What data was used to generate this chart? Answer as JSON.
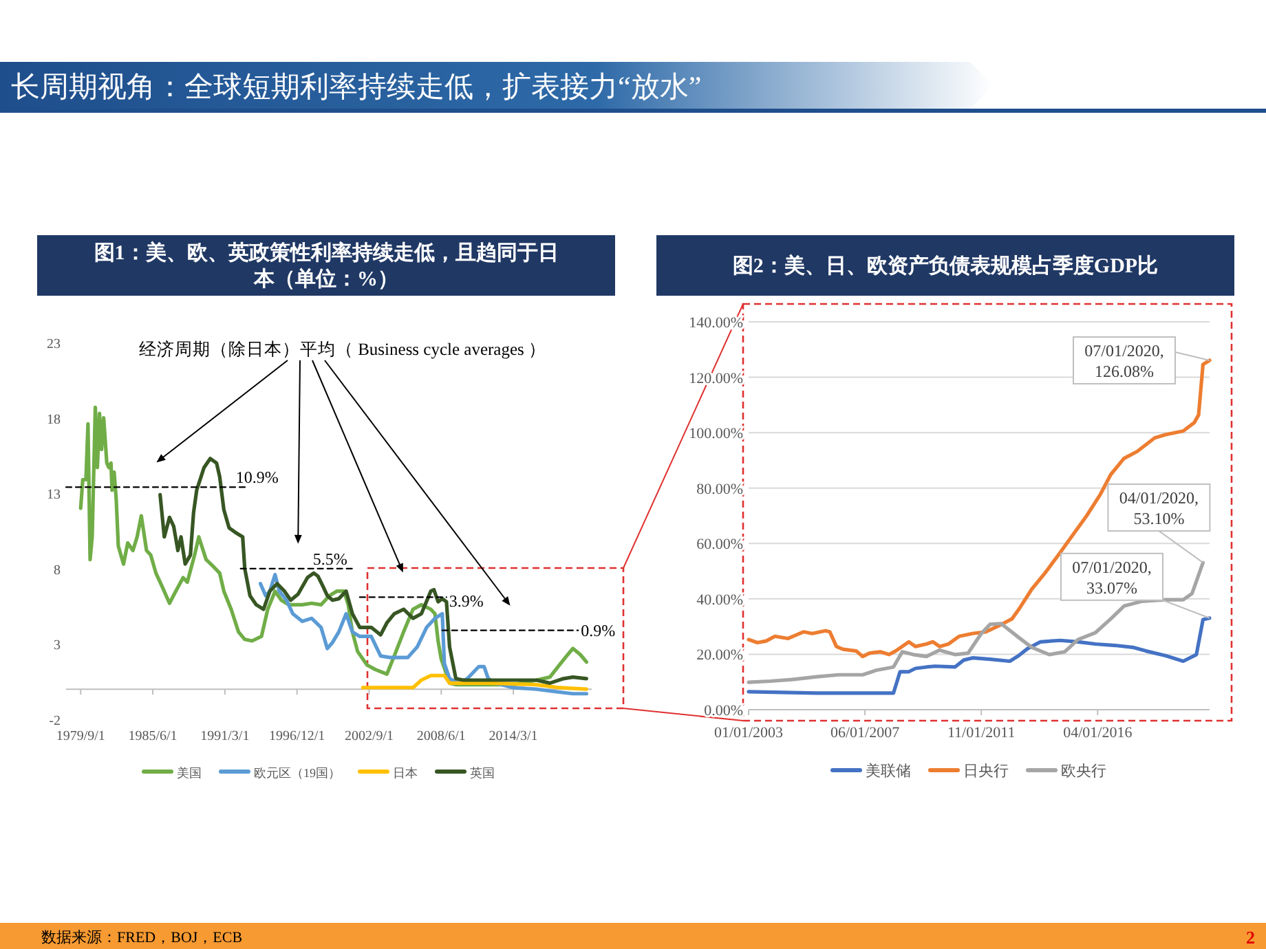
{
  "chart_data": [
    {
      "type": "other",
      "title": "长周期视角：全球短期利率持续走低，扩表接力“放水”",
      "annotations": [
        "数据来源：FRED，BOJ，ECB",
        "2"
      ]
    },
    {
      "type": "line",
      "title": "图1：美、欧、英政策性利率持续走低，且趋同于日本（单位：%）",
      "legend": "bottom",
      "xlim": [
        "1978-07",
        "2020-06"
      ],
      "ylim": [
        -2,
        23
      ],
      "yticks": [
        -2,
        3,
        8,
        13,
        18,
        23
      ],
      "xticks": [
        {
          "value": "1979-09-01",
          "label": "1979/9/1"
        },
        {
          "value": "1985-06-01",
          "label": "1985/6/1"
        },
        {
          "value": "1991-03-01",
          "label": "1991/3/1"
        },
        {
          "value": "1996-12-01",
          "label": "1996/12/1"
        },
        {
          "value": "2002-09-01",
          "label": "2002/9/1"
        },
        {
          "value": "2008-06-01",
          "label": "2008/6/1"
        },
        {
          "value": "2014-03-01",
          "label": "2014/3/1"
        }
      ],
      "series": [
        {
          "name": "美国",
          "color": "#70ad47",
          "x": [
            "1979-09",
            "1979-11",
            "1980-02",
            "1980-04",
            "1980-06",
            "1980-08",
            "1980-11",
            "1981-01",
            "1981-03",
            "1981-05",
            "1981-07",
            "1981-10",
            "1981-12",
            "1982-02",
            "1982-03",
            "1982-05",
            "1982-07",
            "1982-09",
            "1983-02",
            "1983-06",
            "1983-11",
            "1984-03",
            "1984-07",
            "1984-12",
            "1985-04",
            "1985-09",
            "1986-03",
            "1986-10",
            "1987-04",
            "1987-11",
            "1988-03",
            "1988-10",
            "1989-02",
            "1989-09",
            "1990-03",
            "1990-10",
            "1991-02",
            "1991-09",
            "1992-04",
            "1992-10",
            "1993-05",
            "1994-02",
            "1994-08",
            "1995-03",
            "1995-09",
            "1996-04",
            "1996-11",
            "1997-05",
            "1998-02",
            "1998-11",
            "1999-07",
            "2000-02",
            "2000-09",
            "2001-01",
            "2001-05",
            "2001-10",
            "2002-07",
            "2003-03",
            "2004-02",
            "2004-09",
            "2005-06",
            "2006-03",
            "2006-11",
            "2007-08",
            "2007-12",
            "2008-03",
            "2008-06",
            "2008-11",
            "2009-02",
            "2009-08",
            "2010-03",
            "2012-05",
            "2014-03",
            "2016-01",
            "2017-02",
            "2017-11",
            "2018-06",
            "2018-12",
            "2019-07",
            "2020-01"
          ],
          "values": [
            12.0,
            13.9,
            13.9,
            17.6,
            8.6,
            10.1,
            18.7,
            14.7,
            18.3,
            15.9,
            18.0,
            15.0,
            14.7,
            15.0,
            13.2,
            14.4,
            12.6,
            9.5,
            8.3,
            9.7,
            9.2,
            10.1,
            11.5,
            9.2,
            8.9,
            7.7,
            6.8,
            5.7,
            6.5,
            7.4,
            7.1,
            8.9,
            10.1,
            8.6,
            8.2,
            7.7,
            6.5,
            5.3,
            3.8,
            3.3,
            3.2,
            3.5,
            5.3,
            6.5,
            5.9,
            5.6,
            5.6,
            5.6,
            5.7,
            5.6,
            6.2,
            6.5,
            6.5,
            5.6,
            3.8,
            2.5,
            1.6,
            1.3,
            1.0,
            2.2,
            3.8,
            5.3,
            5.6,
            5.3,
            5.0,
            3.2,
            2.0,
            1.0,
            0.4,
            0.3,
            0.3,
            0.3,
            0.3,
            0.6,
            0.8,
            1.6,
            2.2,
            2.7,
            2.3,
            1.8
          ]
        },
        {
          "name": "欧元区（19国）",
          "color": "#5b9bd5",
          "x": [
            "1994-01",
            "1994-06",
            "1994-10",
            "1995-03",
            "1995-07",
            "1996-02",
            "1996-08",
            "1997-05",
            "1998-02",
            "1998-11",
            "1999-05",
            "1999-10",
            "2000-04",
            "2000-11",
            "2001-05",
            "2001-12",
            "2002-11",
            "2003-08",
            "2004-05",
            "2005-10",
            "2006-07",
            "2007-04",
            "2007-12",
            "2008-07",
            "2008-09",
            "2009-02",
            "2009-10",
            "2010-07",
            "2011-06",
            "2011-11",
            "2012-03",
            "2012-10",
            "2014-03",
            "2016-01",
            "2017-11",
            "2018-12",
            "2020-01"
          ],
          "values": [
            7.0,
            6.2,
            6.5,
            7.6,
            6.5,
            5.9,
            5.0,
            4.5,
            4.7,
            4.1,
            2.7,
            3.1,
            3.8,
            5.0,
            3.8,
            3.5,
            3.5,
            2.2,
            2.1,
            2.1,
            2.8,
            4.1,
            4.7,
            5.0,
            1.7,
            0.7,
            0.4,
            0.7,
            1.5,
            1.5,
            0.7,
            0.4,
            0.1,
            0.0,
            -0.2,
            -0.3,
            -0.3
          ]
        },
        {
          "name": "日本",
          "color": "#ffc000",
          "x": [
            "2002-03",
            "2006-03",
            "2006-11",
            "2007-08",
            "2008-09",
            "2009-02",
            "2012-05",
            "2016-01",
            "2017-11",
            "2020-01"
          ],
          "values": [
            0.1,
            0.1,
            0.6,
            0.9,
            0.9,
            0.4,
            0.4,
            0.3,
            0.1,
            0.0
          ]
        },
        {
          "name": "英国",
          "color": "#375623",
          "x": [
            "1986-01",
            "1986-05",
            "1986-10",
            "1987-02",
            "1987-06",
            "1987-09",
            "1988-01",
            "1988-06",
            "1988-09",
            "1988-12",
            "1989-07",
            "1990-01",
            "1990-07",
            "1990-10",
            "1991-02",
            "1991-07",
            "1992-01",
            "1992-08",
            "1992-10",
            "1993-03",
            "1993-09",
            "1994-04",
            "1994-10",
            "1995-05",
            "1995-12",
            "1996-06",
            "1997-01",
            "1997-10",
            "1998-04",
            "1998-08",
            "1999-01",
            "1999-05",
            "1999-10",
            "2000-04",
            "2000-11",
            "2001-05",
            "2001-12",
            "2002-11",
            "2003-08",
            "2004-02",
            "2004-09",
            "2005-06",
            "2006-03",
            "2006-11",
            "2007-08",
            "2007-11",
            "2008-03",
            "2008-07",
            "2008-11",
            "2009-02",
            "2009-08",
            "2010-03",
            "2012-01",
            "2014-03",
            "2016-01",
            "2017-02",
            "2018-03",
            "2018-12",
            "2020-01"
          ],
          "values": [
            12.9,
            10.1,
            11.4,
            10.8,
            9.2,
            10.1,
            8.3,
            8.9,
            11.7,
            13.2,
            14.7,
            15.3,
            15.0,
            14.1,
            11.9,
            10.7,
            10.4,
            10.1,
            8.0,
            6.2,
            5.6,
            5.3,
            6.5,
            7.0,
            6.5,
            5.9,
            6.3,
            7.4,
            7.7,
            7.5,
            6.8,
            6.2,
            5.9,
            6.0,
            6.5,
            5.0,
            4.1,
            4.1,
            3.6,
            4.4,
            5.0,
            5.3,
            4.7,
            5.0,
            6.5,
            6.6,
            5.8,
            6.0,
            5.8,
            2.8,
            0.7,
            0.6,
            0.6,
            0.6,
            0.6,
            0.4,
            0.7,
            0.8,
            0.7
          ]
        },
        {
          "color": "#000000",
          "line_style": "dashed",
          "x": [
            "1978-07",
            "1992-12"
          ],
          "values": [
            13.4,
            13.4
          ]
        },
        {
          "color": "#000000",
          "line_style": "dashed",
          "x": [
            "1992-06",
            "2001-08"
          ],
          "values": [
            8.0,
            8.0
          ]
        },
        {
          "color": "#000000",
          "line_style": "dashed",
          "x": [
            "2001-12",
            "2008-11"
          ],
          "values": [
            6.1,
            6.1
          ]
        },
        {
          "color": "#000000",
          "line_style": "dashed",
          "x": [
            "2008-07",
            "2019-05"
          ],
          "values": [
            3.9,
            3.9
          ]
        }
      ],
      "annotations": [
        "经济周期（除日本）平均（ Business cycle averages ）",
        {
          "text": "10.9%",
          "x": "1992-12",
          "y": 13.4
        },
        {
          "text": "5.5%",
          "x": "2001-08",
          "y": 8.0
        },
        {
          "text": "3.9%",
          "x": "2008-11",
          "y": 6.1
        },
        {
          "text": "0.9%",
          "x": "2019-05",
          "y": 3.9
        }
      ]
    },
    {
      "type": "line",
      "title": "图2：美、日、欧资产负债表规模占季度GDP比",
      "legend": "bottom",
      "grid": "y",
      "xlim": [
        "2003-01",
        "2020-07"
      ],
      "ylim": [
        0,
        140
      ],
      "yticks": [
        {
          "value": 0,
          "label": "0.00%"
        },
        {
          "value": 20,
          "label": "20.00%"
        },
        {
          "value": 40,
          "label": "40.00%"
        },
        {
          "value": 60,
          "label": "60.00%"
        },
        {
          "value": 80,
          "label": "80.00%"
        },
        {
          "value": 100,
          "label": "100.00%"
        },
        {
          "value": 120,
          "label": "120.00%"
        },
        {
          "value": 140,
          "label": "140.00%"
        }
      ],
      "xticks": [
        {
          "value": "2003-01-01",
          "label": "01/01/2003"
        },
        {
          "value": "2007-06-01",
          "label": "06/01/2007"
        },
        {
          "value": "2011-11-01",
          "label": "11/01/2011"
        },
        {
          "value": "2016-04-01",
          "label": "04/01/2016"
        }
      ],
      "series": [
        {
          "name": "美联储",
          "color": "#4472c4",
          "x": [
            "2003-01",
            "2005-08",
            "2008-07",
            "2008-10",
            "2009-02",
            "2009-05",
            "2009-10",
            "2010-02",
            "2010-11",
            "2011-03",
            "2011-07",
            "2012-03",
            "2012-12",
            "2013-04",
            "2013-08",
            "2014-02",
            "2014-11",
            "2015-07",
            "2016-03",
            "2016-12",
            "2017-08",
            "2018-02",
            "2018-11",
            "2019-07",
            "2020-01",
            "2020-04",
            "2020-07"
          ],
          "values": [
            6.5,
            6.0,
            6.0,
            13.7,
            13.7,
            14.9,
            15.4,
            15.7,
            15.4,
            17.9,
            18.7,
            18.2,
            17.5,
            19.5,
            22.0,
            24.5,
            25.0,
            24.5,
            23.7,
            23.2,
            22.5,
            21.2,
            19.5,
            17.5,
            19.9,
            32.5,
            33.07
          ]
        },
        {
          "name": "日央行",
          "color": "#ed7d31",
          "x": [
            "2003-01",
            "2003-05",
            "2003-09",
            "2004-01",
            "2004-07",
            "2005-02",
            "2005-06",
            "2005-12",
            "2006-02",
            "2006-05",
            "2006-08",
            "2007-02",
            "2007-05",
            "2007-08",
            "2008-01",
            "2008-05",
            "2008-08",
            "2009-02",
            "2009-05",
            "2009-10",
            "2010-01",
            "2010-04",
            "2010-08",
            "2011-01",
            "2011-07",
            "2012-01",
            "2012-07",
            "2013-01",
            "2013-04",
            "2013-10",
            "2014-04",
            "2014-11",
            "2015-05",
            "2015-11",
            "2016-05",
            "2016-10",
            "2017-04",
            "2017-10",
            "2018-06",
            "2018-11",
            "2019-07",
            "2019-12",
            "2020-02",
            "2020-04",
            "2020-07"
          ],
          "values": [
            25.3,
            24.2,
            24.8,
            26.5,
            25.7,
            28.1,
            27.5,
            28.5,
            28.1,
            22.8,
            21.8,
            21.2,
            19.2,
            20.4,
            20.9,
            19.9,
            21.2,
            24.5,
            22.8,
            23.7,
            24.5,
            22.8,
            23.7,
            26.5,
            27.5,
            28.1,
            30.3,
            32.8,
            36.1,
            43.5,
            49.3,
            56.8,
            63.4,
            70.0,
            77.4,
            84.9,
            90.7,
            93.2,
            98.1,
            99.3,
            100.6,
            103.6,
            106.4,
            124.6,
            126.08
          ]
        },
        {
          "name": "欧央行",
          "color": "#a5a5a5",
          "x": [
            "2003-01",
            "2003-11",
            "2004-09",
            "2005-08",
            "2006-06",
            "2007-05",
            "2007-11",
            "2008-07",
            "2008-11",
            "2009-04",
            "2009-10",
            "2010-04",
            "2010-11",
            "2011-05",
            "2011-11",
            "2012-03",
            "2012-08",
            "2013-04",
            "2013-10",
            "2014-06",
            "2015-01",
            "2015-07",
            "2016-03",
            "2016-10",
            "2017-04",
            "2017-12",
            "2018-11",
            "2019-07",
            "2019-11",
            "2020-04"
          ],
          "values": [
            9.9,
            10.3,
            10.9,
            11.9,
            12.6,
            12.6,
            14.2,
            15.4,
            20.9,
            19.9,
            19.2,
            21.5,
            19.9,
            20.4,
            27.5,
            30.8,
            31.1,
            26.1,
            22.5,
            19.9,
            20.9,
            25.3,
            27.8,
            32.8,
            37.4,
            39.1,
            39.7,
            39.7,
            41.9,
            53.1
          ]
        }
      ],
      "annotations": [
        {
          "text": "07/01/2020,\n126.08%",
          "x": "2020-07",
          "y": 126.08
        },
        {
          "text": "04/01/2020,\n53.10%",
          "x": "2020-04",
          "y": 53.1
        },
        {
          "text": "07/01/2020,\n33.07%",
          "x": "2020-07",
          "y": 33.07
        }
      ]
    }
  ]
}
